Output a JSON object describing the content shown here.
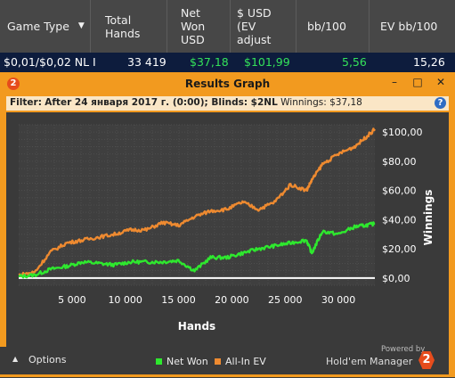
{
  "table": {
    "headers": {
      "game_type": "Game Type",
      "hands_1": "Total",
      "hands_2": "Hands",
      "net_1": "Net",
      "net_2": "Won",
      "net_3": "USD",
      "ev_1": "$ USD",
      "ev_2": "(EV",
      "ev_3": "adjust",
      "bb100": "bb/100",
      "evbb100": "EV bb/100"
    },
    "row": {
      "game_type": "$0,01/$0,02 NL I",
      "hands": "33 419",
      "net_won": "$37,18",
      "ev_adjusted": "$101,99",
      "bb100": "5,56",
      "evbb100": "15,26"
    }
  },
  "window": {
    "title": "Results Graph",
    "logo_badge": "2",
    "filter_prefix": "Filter:",
    "filter_text": "After 24 января 2017 г. (0:00); Blinds: $2NL",
    "filter_winnings": "Winnings: $37,18"
  },
  "options_label": "Options",
  "legend": {
    "net_won": "Net Won",
    "allin_ev": "All-In EV"
  },
  "branding": {
    "powered": "Powered by",
    "product": "Hold'em Manager",
    "badge": "2"
  },
  "colors": {
    "net_won": "#2ee82e",
    "allin_ev": "#ee8a30",
    "window": "#f29a1f",
    "positive": "#34e25a"
  },
  "chart_data": {
    "type": "line",
    "xlabel": "Hands",
    "ylabel": "Winnings",
    "xlim": [
      0,
      33419
    ],
    "ylim": [
      -5,
      105
    ],
    "x_ticks": [
      5000,
      10000,
      15000,
      20000,
      25000,
      30000
    ],
    "x_tick_labels": [
      "5 000",
      "10 000",
      "15 000",
      "20 000",
      "25 000",
      "30 000"
    ],
    "y_ticks": [
      0,
      20,
      40,
      60,
      80,
      100
    ],
    "y_tick_labels": [
      "$0,00",
      "$20,00",
      "$40,00",
      "$60,00",
      "$80,00",
      "$100,00"
    ],
    "grid": true,
    "series": [
      {
        "name": "Net Won",
        "x": [
          0,
          1500,
          3000,
          4500,
          6000,
          7500,
          9000,
          10500,
          12000,
          13500,
          15000,
          16500,
          18000,
          19500,
          21000,
          22500,
          24000,
          25500,
          27000,
          27500,
          28500,
          30000,
          31500,
          32500,
          33419
        ],
        "y": [
          1,
          2,
          6,
          8,
          11,
          10,
          9,
          11,
          11,
          11,
          12,
          5,
          14,
          14,
          17,
          20,
          22,
          24,
          26,
          17,
          32,
          30,
          35,
          36,
          37.18
        ]
      },
      {
        "name": "All-In EV",
        "x": [
          0,
          1500,
          3000,
          4500,
          6000,
          7500,
          9000,
          10500,
          12000,
          13500,
          15000,
          16500,
          18000,
          19500,
          21000,
          22500,
          24000,
          25500,
          27000,
          27500,
          28500,
          30000,
          31500,
          32500,
          33419
        ],
        "y": [
          2,
          4,
          18,
          24,
          26,
          28,
          30,
          33,
          33,
          38,
          36,
          42,
          46,
          47,
          52,
          47,
          52,
          64,
          60,
          67,
          78,
          85,
          90,
          96,
          101.99
        ]
      }
    ]
  }
}
